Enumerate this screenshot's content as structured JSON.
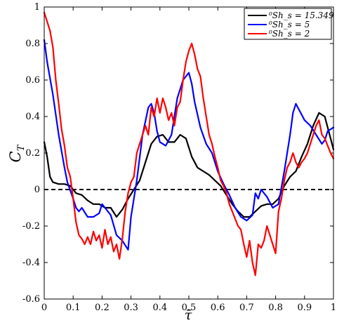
{
  "chart_data": {
    "type": "line",
    "title": "",
    "xlabel": "τ̄",
    "ylabel": "C_T",
    "xlim": [
      0,
      1
    ],
    "ylim": [
      -0.6,
      1
    ],
    "grid": false,
    "legend_position": "top-right",
    "x_ticks": [
      "0",
      "0.1",
      "0.2",
      "0.3",
      "0.4",
      "0.5",
      "0.6",
      "0.7",
      "0.8",
      "0.9",
      "1"
    ],
    "y_ticks": [
      "-0.6",
      "-0.4",
      "-0.2",
      "0",
      "0.2",
      "0.4",
      "0.6",
      "0.8",
      "1"
    ],
    "reference_line": {
      "y": 0,
      "style": "dashed",
      "color": "#000000"
    },
    "series": [
      {
        "name": "⁰Sh_s = 15.349",
        "color": "#000000",
        "points": [
          [
            0,
            0.26
          ],
          [
            0.01,
            0.18
          ],
          [
            0.02,
            0.07
          ],
          [
            0.03,
            0.04
          ],
          [
            0.05,
            0.03
          ],
          [
            0.07,
            0.03
          ],
          [
            0.09,
            0.02
          ],
          [
            0.11,
            -0.02
          ],
          [
            0.13,
            -0.03
          ],
          [
            0.15,
            -0.06
          ],
          [
            0.17,
            -0.08
          ],
          [
            0.19,
            -0.08
          ],
          [
            0.21,
            -0.1
          ],
          [
            0.23,
            -0.1
          ],
          [
            0.25,
            -0.15
          ],
          [
            0.27,
            -0.11
          ],
          [
            0.29,
            -0.05
          ],
          [
            0.31,
            0.0
          ],
          [
            0.33,
            0.05
          ],
          [
            0.35,
            0.15
          ],
          [
            0.37,
            0.25
          ],
          [
            0.39,
            0.29
          ],
          [
            0.41,
            0.3
          ],
          [
            0.43,
            0.26
          ],
          [
            0.45,
            0.26
          ],
          [
            0.47,
            0.3
          ],
          [
            0.49,
            0.28
          ],
          [
            0.51,
            0.18
          ],
          [
            0.53,
            0.12
          ],
          [
            0.55,
            0.1
          ],
          [
            0.57,
            0.08
          ],
          [
            0.59,
            0.05
          ],
          [
            0.61,
            0.02
          ],
          [
            0.63,
            -0.03
          ],
          [
            0.65,
            -0.08
          ],
          [
            0.67,
            -0.12
          ],
          [
            0.69,
            -0.15
          ],
          [
            0.71,
            -0.15
          ],
          [
            0.73,
            -0.12
          ],
          [
            0.75,
            -0.09
          ],
          [
            0.77,
            -0.08
          ],
          [
            0.79,
            -0.08
          ],
          [
            0.81,
            -0.05
          ],
          [
            0.83,
            0.02
          ],
          [
            0.85,
            0.07
          ],
          [
            0.87,
            0.1
          ],
          [
            0.89,
            0.18
          ],
          [
            0.91,
            0.25
          ],
          [
            0.93,
            0.35
          ],
          [
            0.95,
            0.42
          ],
          [
            0.97,
            0.4
          ],
          [
            0.99,
            0.28
          ],
          [
            1.0,
            0.22
          ]
        ]
      },
      {
        "name": "⁰Sh_s = 5",
        "color": "#0000ff",
        "points": [
          [
            0,
            0.82
          ],
          [
            0.01,
            0.7
          ],
          [
            0.03,
            0.52
          ],
          [
            0.05,
            0.3
          ],
          [
            0.07,
            0.12
          ],
          [
            0.08,
            0.04
          ],
          [
            0.1,
            -0.05
          ],
          [
            0.11,
            -0.1
          ],
          [
            0.12,
            -0.12
          ],
          [
            0.13,
            -0.1
          ],
          [
            0.15,
            -0.15
          ],
          [
            0.17,
            -0.15
          ],
          [
            0.19,
            -0.13
          ],
          [
            0.2,
            -0.08
          ],
          [
            0.21,
            -0.1
          ],
          [
            0.23,
            -0.14
          ],
          [
            0.25,
            -0.25
          ],
          [
            0.27,
            -0.28
          ],
          [
            0.29,
            -0.33
          ],
          [
            0.3,
            -0.15
          ],
          [
            0.32,
            0.05
          ],
          [
            0.34,
            0.3
          ],
          [
            0.36,
            0.45
          ],
          [
            0.37,
            0.47
          ],
          [
            0.38,
            0.42
          ],
          [
            0.39,
            0.32
          ],
          [
            0.4,
            0.26
          ],
          [
            0.42,
            0.24
          ],
          [
            0.44,
            0.3
          ],
          [
            0.45,
            0.4
          ],
          [
            0.46,
            0.5
          ],
          [
            0.48,
            0.6
          ],
          [
            0.5,
            0.64
          ],
          [
            0.51,
            0.58
          ],
          [
            0.52,
            0.48
          ],
          [
            0.54,
            0.34
          ],
          [
            0.56,
            0.25
          ],
          [
            0.58,
            0.2
          ],
          [
            0.6,
            0.1
          ],
          [
            0.62,
            0.03
          ],
          [
            0.64,
            -0.03
          ],
          [
            0.66,
            -0.1
          ],
          [
            0.68,
            -0.15
          ],
          [
            0.7,
            -0.17
          ],
          [
            0.72,
            -0.14
          ],
          [
            0.73,
            -0.02
          ],
          [
            0.74,
            -0.05
          ],
          [
            0.75,
            0.0
          ],
          [
            0.77,
            -0.04
          ],
          [
            0.79,
            -0.1
          ],
          [
            0.81,
            -0.08
          ],
          [
            0.83,
            0.1
          ],
          [
            0.85,
            0.3
          ],
          [
            0.86,
            0.42
          ],
          [
            0.87,
            0.47
          ],
          [
            0.88,
            0.44
          ],
          [
            0.9,
            0.38
          ],
          [
            0.92,
            0.35
          ],
          [
            0.94,
            0.3
          ],
          [
            0.96,
            0.25
          ],
          [
            0.97,
            0.27
          ],
          [
            0.98,
            0.32
          ],
          [
            1.0,
            0.34
          ]
        ]
      },
      {
        "name": "⁰Sh_s = 2",
        "color": "#ff0000",
        "points": [
          [
            0,
            0.97
          ],
          [
            0.01,
            0.92
          ],
          [
            0.02,
            0.87
          ],
          [
            0.03,
            0.78
          ],
          [
            0.04,
            0.6
          ],
          [
            0.05,
            0.47
          ],
          [
            0.06,
            0.33
          ],
          [
            0.07,
            0.24
          ],
          [
            0.08,
            0.12
          ],
          [
            0.09,
            0.07
          ],
          [
            0.1,
            -0.05
          ],
          [
            0.11,
            -0.18
          ],
          [
            0.12,
            -0.25
          ],
          [
            0.13,
            -0.27
          ],
          [
            0.14,
            -0.3
          ],
          [
            0.15,
            -0.26
          ],
          [
            0.16,
            -0.3
          ],
          [
            0.17,
            -0.23
          ],
          [
            0.18,
            -0.28
          ],
          [
            0.19,
            -0.25
          ],
          [
            0.2,
            -0.32
          ],
          [
            0.21,
            -0.22
          ],
          [
            0.22,
            -0.3
          ],
          [
            0.23,
            -0.26
          ],
          [
            0.24,
            -0.34
          ],
          [
            0.25,
            -0.3
          ],
          [
            0.26,
            -0.38
          ],
          [
            0.27,
            -0.27
          ],
          [
            0.28,
            -0.12
          ],
          [
            0.29,
            -0.02
          ],
          [
            0.3,
            0.04
          ],
          [
            0.31,
            0.07
          ],
          [
            0.32,
            0.2
          ],
          [
            0.33,
            0.25
          ],
          [
            0.34,
            0.3
          ],
          [
            0.35,
            0.35
          ],
          [
            0.36,
            0.3
          ],
          [
            0.37,
            0.45
          ],
          [
            0.38,
            0.4
          ],
          [
            0.39,
            0.5
          ],
          [
            0.4,
            0.42
          ],
          [
            0.41,
            0.5
          ],
          [
            0.42,
            0.45
          ],
          [
            0.43,
            0.38
          ],
          [
            0.44,
            0.42
          ],
          [
            0.45,
            0.35
          ],
          [
            0.46,
            0.45
          ],
          [
            0.47,
            0.48
          ],
          [
            0.48,
            0.6
          ],
          [
            0.49,
            0.7
          ],
          [
            0.5,
            0.76
          ],
          [
            0.51,
            0.8
          ],
          [
            0.52,
            0.74
          ],
          [
            0.53,
            0.66
          ],
          [
            0.54,
            0.62
          ],
          [
            0.55,
            0.5
          ],
          [
            0.56,
            0.4
          ],
          [
            0.57,
            0.3
          ],
          [
            0.58,
            0.25
          ],
          [
            0.59,
            0.18
          ],
          [
            0.6,
            0.12
          ],
          [
            0.61,
            0.05
          ],
          [
            0.62,
            0.02
          ],
          [
            0.63,
            -0.02
          ],
          [
            0.64,
            -0.08
          ],
          [
            0.65,
            -0.12
          ],
          [
            0.66,
            -0.16
          ],
          [
            0.67,
            -0.2
          ],
          [
            0.68,
            -0.22
          ],
          [
            0.69,
            -0.3
          ],
          [
            0.7,
            -0.37
          ],
          [
            0.71,
            -0.28
          ],
          [
            0.72,
            -0.4
          ],
          [
            0.73,
            -0.47
          ],
          [
            0.74,
            -0.3
          ],
          [
            0.75,
            -0.32
          ],
          [
            0.76,
            -0.28
          ],
          [
            0.77,
            -0.2
          ],
          [
            0.78,
            -0.25
          ],
          [
            0.79,
            -0.3
          ],
          [
            0.8,
            -0.35
          ],
          [
            0.81,
            -0.12
          ],
          [
            0.82,
            -0.05
          ],
          [
            0.83,
            0.05
          ],
          [
            0.84,
            0.12
          ],
          [
            0.85,
            0.15
          ],
          [
            0.86,
            0.2
          ],
          [
            0.87,
            0.15
          ],
          [
            0.88,
            0.12
          ],
          [
            0.89,
            0.15
          ],
          [
            0.9,
            0.17
          ],
          [
            0.91,
            0.2
          ],
          [
            0.92,
            0.25
          ],
          [
            0.93,
            0.3
          ],
          [
            0.94,
            0.35
          ],
          [
            0.95,
            0.38
          ],
          [
            0.96,
            0.3
          ],
          [
            0.97,
            0.28
          ],
          [
            0.98,
            0.24
          ],
          [
            0.99,
            0.2
          ],
          [
            1.0,
            0.17
          ]
        ]
      }
    ]
  }
}
